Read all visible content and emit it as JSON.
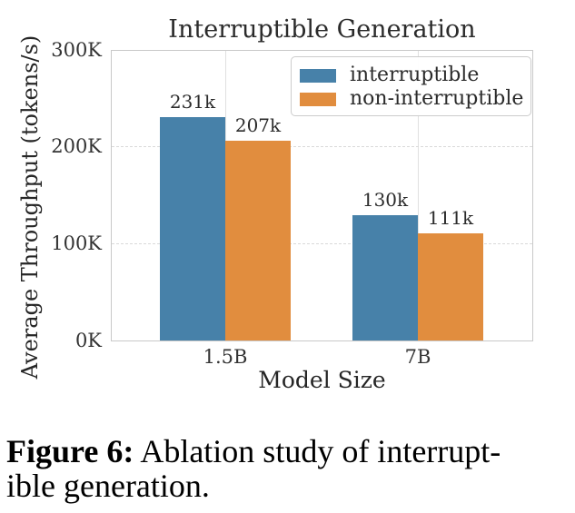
{
  "chart_data": {
    "type": "bar",
    "title": "Interruptible Generation",
    "xlabel": "Model Size",
    "ylabel": "Average Throughput (tokens/s)",
    "categories": [
      "1.5B",
      "7B"
    ],
    "series": [
      {
        "name": "interruptible",
        "color": "#4781a9",
        "values": [
          231000,
          130000
        ],
        "bar_labels": [
          "231k",
          "130k"
        ]
      },
      {
        "name": "non-interruptible",
        "color": "#e18d3e",
        "values": [
          207000,
          111000
        ],
        "bar_labels": [
          "207k",
          "111k"
        ]
      }
    ],
    "ylim": [
      0,
      300000
    ],
    "yticks": [
      "0K",
      "100K",
      "200K",
      "300K"
    ],
    "grid": {
      "horizontal": "dashed",
      "vertical_at_categories": true
    },
    "legend_position": "upper right"
  },
  "caption": {
    "label": "Figure 6:",
    "line1": "Ablation study of interrupt-",
    "line2": "ible generation."
  }
}
